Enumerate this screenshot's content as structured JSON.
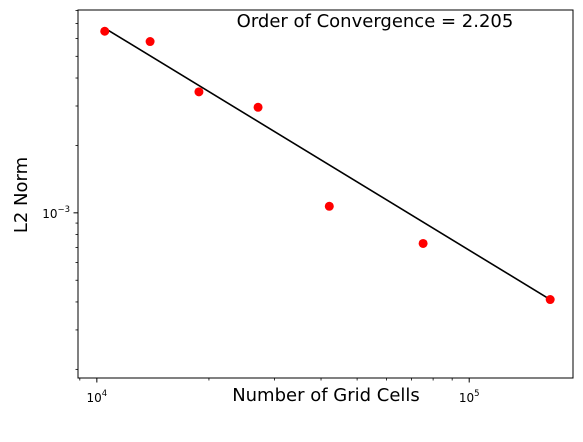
{
  "chart_data": {
    "type": "scatter",
    "title": "",
    "xlabel": "Number of Grid Cells",
    "ylabel": "L2 Norm",
    "annotation": "Order of Convergence = 2.205",
    "xscale": "log",
    "yscale": "log",
    "xlim": [
      8900,
      190000
    ],
    "ylim": [
      0.000183,
      0.00805
    ],
    "x_ticks": [
      {
        "value": 10000,
        "base": "10",
        "exp": "4"
      },
      {
        "value": 100000,
        "base": "10",
        "exp": "5"
      }
    ],
    "y_ticks": [
      {
        "value": 0.001,
        "base": "10",
        "exp": "−3"
      }
    ],
    "grid": false,
    "legend": "none",
    "series": [
      {
        "marker": "circle",
        "color": "#ff0000",
        "x": [
          10500,
          13900,
          18800,
          27100,
          42100,
          75200,
          165000
        ],
        "y": [
          0.00647,
          0.00582,
          0.00347,
          0.00296,
          0.00107,
          0.00073,
          0.00041
        ]
      },
      {
        "line": "fit",
        "color": "#000000",
        "x": [
          10500,
          165000
        ],
        "y": [
          0.00668,
          0.00041
        ]
      }
    ]
  }
}
